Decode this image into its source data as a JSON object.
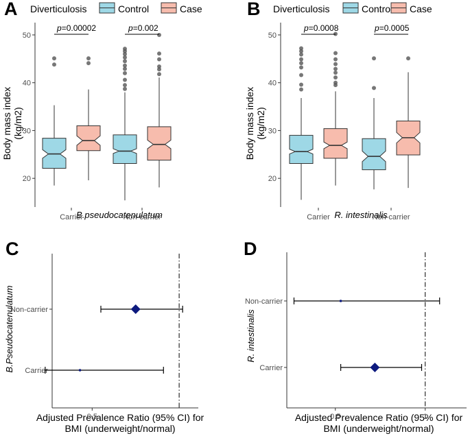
{
  "panel_labels": {
    "A": "A",
    "B": "B",
    "C": "C",
    "D": "D"
  },
  "chart_data": [
    {
      "panel": "A",
      "type": "box",
      "legend_title": "Diverticulosis",
      "legend": [
        {
          "name": "Control",
          "color": "#9ed8e6"
        },
        {
          "name": "Case",
          "color": "#f7bcad"
        }
      ],
      "ylabel": "Body mass index\n(kg/m2)",
      "xlabel": "B.pseudocatenulatum",
      "ylim": [
        14,
        52
      ],
      "yticks": [
        20,
        30,
        40,
        50
      ],
      "categories": [
        "Carrier",
        "Non-carrier"
      ],
      "series": [
        {
          "name": "Control",
          "boxes": [
            {
              "whisker_low": 18.5,
              "q1": 22.1,
              "median": 25.1,
              "q3": 28.4,
              "whisker_high": 35.3,
              "notch": [
                24.2,
                26.0
              ],
              "outliers": [
                43.8,
                45.1
              ]
            },
            {
              "whisker_low": 15.4,
              "q1": 23.1,
              "median": 25.7,
              "q3": 29.1,
              "whisker_high": 38.0,
              "notch": [
                25.2,
                26.2
              ],
              "outliers": [
                38.7,
                39.5,
                40.6,
                42.0,
                42.9,
                43.6,
                44.5,
                45.3,
                46.0,
                46.6,
                47.1
              ]
            }
          ]
        },
        {
          "name": "Case",
          "boxes": [
            {
              "whisker_low": 19.6,
              "q1": 25.8,
              "median": 27.9,
              "q3": 31.0,
              "whisker_high": 38.6,
              "notch": [
                26.9,
                28.9
              ],
              "outliers": [
                44.1,
                45.1
              ]
            },
            {
              "whisker_low": 18.1,
              "q1": 23.8,
              "median": 27.1,
              "q3": 30.8,
              "whisker_high": 41.1,
              "notch": [
                26.2,
                28.0
              ],
              "outliers": [
                41.8,
                42.8,
                43.4,
                44.9,
                46.1,
                50.0
              ]
            }
          ]
        }
      ],
      "pvalues": [
        {
          "category": "Carrier",
          "label": "p=0.00002"
        },
        {
          "category": "Non-carrier",
          "label": "p=0.002"
        }
      ]
    },
    {
      "panel": "B",
      "type": "box",
      "legend_title": "Diverticulosis",
      "legend": [
        {
          "name": "Control",
          "color": "#9ed8e6"
        },
        {
          "name": "Case",
          "color": "#f7bcad"
        }
      ],
      "ylabel": "Body mass index\n(kg/m2)",
      "xlabel": "R. intestinalis",
      "ylim": [
        14,
        52
      ],
      "yticks": [
        20,
        30,
        40,
        50
      ],
      "categories": [
        "Carrier",
        "Non-carrier"
      ],
      "series": [
        {
          "name": "Control",
          "boxes": [
            {
              "whisker_low": 15.5,
              "q1": 23.1,
              "median": 25.6,
              "q3": 29.0,
              "whisker_high": 36.8,
              "notch": [
                25.1,
                26.1
              ],
              "outliers": [
                38.6,
                39.6,
                41.6,
                43.2,
                44.1,
                44.9,
                45.9,
                46.6,
                47.2
              ]
            },
            {
              "whisker_low": 17.7,
              "q1": 21.8,
              "median": 24.6,
              "q3": 28.3,
              "whisker_high": 36.8,
              "notch": [
                23.5,
                25.7
              ],
              "outliers": [
                38.9,
                45.1
              ]
            }
          ]
        },
        {
          "name": "Case",
          "boxes": [
            {
              "whisker_low": 18.5,
              "q1": 24.2,
              "median": 26.9,
              "q3": 30.4,
              "whisker_high": 38.2,
              "notch": [
                26.2,
                27.6
              ],
              "outliers": [
                39.5,
                40.0,
                41.1,
                42.1,
                42.9,
                43.9,
                44.9,
                46.2,
                50.2
              ]
            },
            {
              "whisker_low": 18.0,
              "q1": 24.9,
              "median": 28.5,
              "q3": 32.0,
              "whisker_high": 42.2,
              "notch": [
                27.4,
                29.6
              ],
              "outliers": [
                45.1
              ]
            }
          ]
        }
      ],
      "pvalues": [
        {
          "category": "Carrier",
          "label": "p=0.0008"
        },
        {
          "category": "Non-carrier",
          "label": "p=0.0005"
        }
      ]
    },
    {
      "panel": "C",
      "type": "forest",
      "ylabel": "B.Pseudocatenulatum",
      "xlabel": "Adjusted Prevalence Ratio (95% CI) for\nBMI (underweight/normal)",
      "xlim": [
        0.27,
        1.11
      ],
      "xticks": [
        0.5
      ],
      "xtick_labels": [
        "0.5"
      ],
      "reference_line": 1,
      "rows": [
        {
          "label": "Non-carrier",
          "estimate": 0.75,
          "lower": 0.55,
          "upper": 1.02,
          "marker": "diamond-large"
        },
        {
          "label": "Carrier",
          "estimate": 0.43,
          "lower": 0.23,
          "upper": 0.91,
          "marker": "dot-small"
        }
      ]
    },
    {
      "panel": "D",
      "type": "forest",
      "ylabel": "R. intestinalis",
      "xlabel": "Adjusted Prevalence Ratio (95% CI) for\nBMI (underweight/normal)",
      "xlim": [
        0.23,
        1.23
      ],
      "xticks": [
        0.5,
        1
      ],
      "xtick_labels": [
        "0.5",
        "1"
      ],
      "reference_line": 1,
      "rows": [
        {
          "label": "Non-carrier",
          "estimate": 0.53,
          "lower": 0.27,
          "upper": 1.08,
          "marker": "dot-small"
        },
        {
          "label": "Carrier",
          "estimate": 0.72,
          "lower": 0.53,
          "upper": 0.98,
          "marker": "diamond-large"
        }
      ]
    }
  ]
}
